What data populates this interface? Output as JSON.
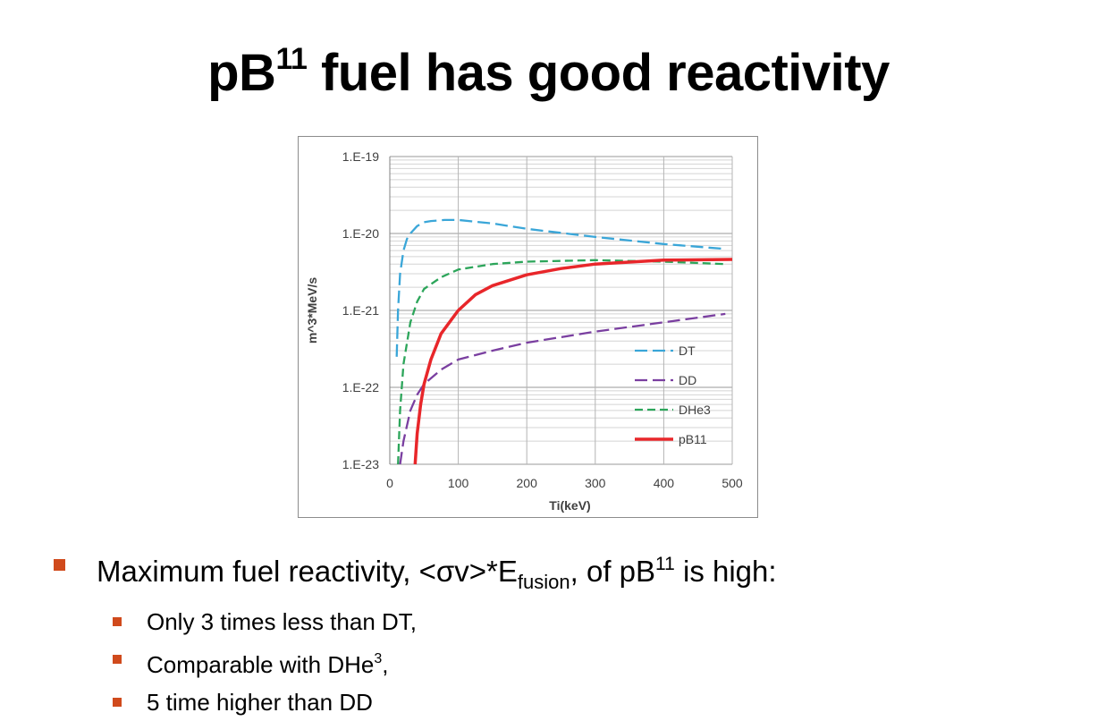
{
  "slide": {
    "title_main": "pB",
    "title_sup": "11",
    "title_rest": " fuel has good reactivity"
  },
  "bullets": {
    "main": {
      "t1": "Maximum fuel reactivity, <σv>*E",
      "sub": "fusion",
      "t2": ", of pB",
      "sup": "11",
      "t3": " is high:"
    },
    "sub1": "Only 3 times less than DT,",
    "sub2_text": "Comparable with DHe",
    "sub2_sup": "3",
    "sub2_end": ",",
    "sub3": "5 time higher than DD"
  },
  "chart_data": {
    "type": "line",
    "xlabel": "Ti(keV)",
    "ylabel": "m^3*MeV/s",
    "xlim": [
      0,
      500
    ],
    "ylim": [
      1e-23,
      1e-19
    ],
    "yscale": "log",
    "x_ticks": [
      "0",
      "100",
      "200",
      "300",
      "400",
      "500"
    ],
    "y_ticks": [
      "1.E-19",
      "1.E-20",
      "1.E-21",
      "1.E-22",
      "1.E-23"
    ],
    "grid": true,
    "legend": "right",
    "series": [
      {
        "name": "DT",
        "color": "#3aa6d8",
        "dash": "long",
        "x": [
          10,
          12,
          15,
          20,
          25,
          30,
          40,
          50,
          60,
          80,
          100,
          150,
          200,
          300,
          400,
          490
        ],
        "y": [
          2.5e-22,
          1e-21,
          3e-21,
          6e-21,
          8.5e-21,
          1e-20,
          1.25e-20,
          1.4e-20,
          1.45e-20,
          1.5e-20,
          1.5e-20,
          1.35e-20,
          1.15e-20,
          9e-21,
          7.3e-21,
          6.3e-21
        ]
      },
      {
        "name": "DD",
        "color": "#7a3fa0",
        "dash": "long",
        "x": [
          15,
          20,
          30,
          40,
          50,
          75,
          100,
          150,
          200,
          300,
          400,
          490
        ],
        "y": [
          1e-23,
          2e-23,
          5e-23,
          8e-23,
          1.1e-22,
          1.7e-22,
          2.3e-22,
          3e-22,
          3.8e-22,
          5.3e-22,
          7e-22,
          9e-22
        ]
      },
      {
        "name": "DHe3",
        "color": "#2ca55a",
        "dash": "short",
        "x": [
          12,
          15,
          20,
          30,
          40,
          50,
          75,
          100,
          150,
          200,
          300,
          400,
          490
        ],
        "y": [
          1e-23,
          5e-23,
          2e-22,
          7e-22,
          1.3e-21,
          1.9e-21,
          2.7e-21,
          3.4e-21,
          4e-21,
          4.3e-21,
          4.5e-21,
          4.3e-21,
          4e-21
        ]
      },
      {
        "name": "pB11",
        "color": "#e8262a",
        "dash": "solid",
        "x": [
          37,
          40,
          45,
          50,
          60,
          75,
          100,
          125,
          150,
          200,
          250,
          300,
          400,
          500
        ],
        "y": [
          1e-23,
          2.5e-23,
          6e-23,
          1.1e-22,
          2.3e-22,
          5e-22,
          1e-21,
          1.6e-21,
          2.1e-21,
          2.9e-21,
          3.5e-21,
          4e-21,
          4.5e-21,
          4.6e-21
        ]
      }
    ]
  }
}
